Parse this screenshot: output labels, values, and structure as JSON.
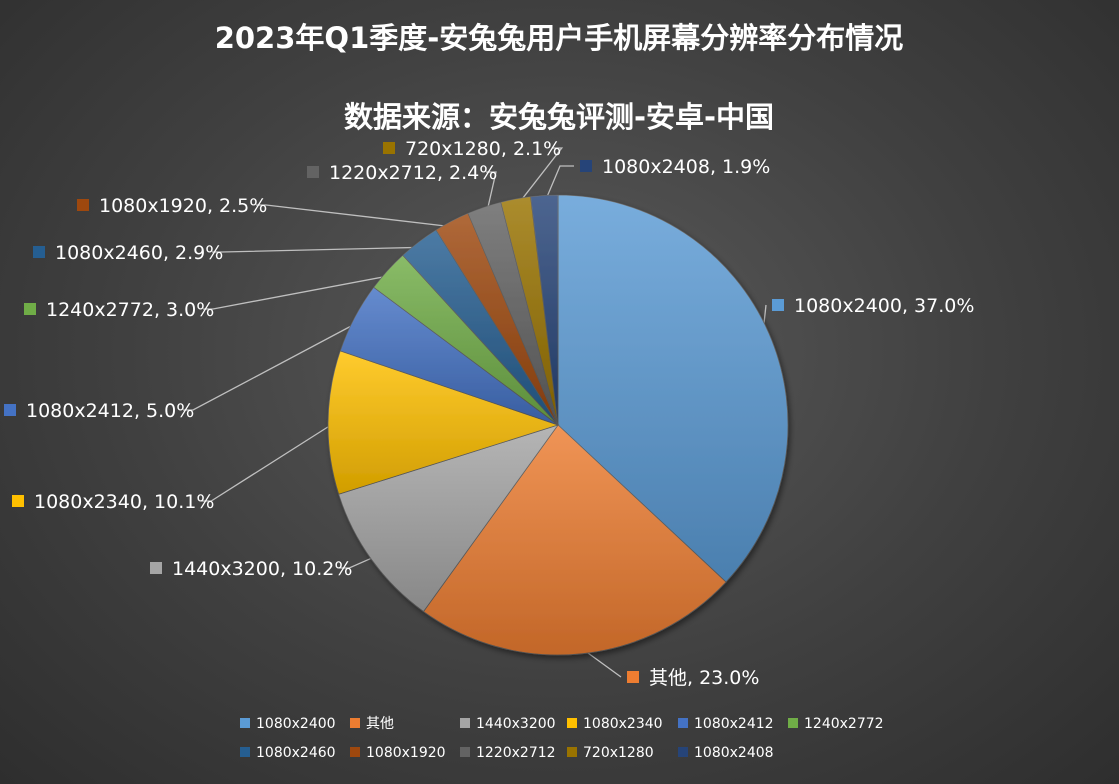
{
  "chart_data": {
    "type": "pie",
    "title": "2023年Q1季度-安兔兔用户手机屏幕分辨率分布情况",
    "subtitle": "数据来源：安兔兔评测-安卓-中国",
    "categories": [
      "1080x2400",
      "其他",
      "1440x3200",
      "1080x2340",
      "1080x2412",
      "1240x2772",
      "1080x2460",
      "1080x1920",
      "1220x2712",
      "720x1280",
      "1080x2408"
    ],
    "values": [
      37.0,
      23.0,
      10.2,
      10.1,
      5.0,
      3.0,
      2.9,
      2.5,
      2.4,
      2.1,
      1.9
    ],
    "data_labels": [
      "1080x2400, 37.0%",
      "其他, 23.0%",
      "1440x3200, 10.2%",
      "1080x2340, 10.1%",
      "1080x2412, 5.0%",
      "1240x2772, 3.0%",
      "1080x2460, 2.9%",
      "1080x1920, 2.5%",
      "1220x2712, 2.4%",
      "720x1280, 2.1%",
      "1080x2408, 1.9%"
    ],
    "colors": [
      "#5b9bd5",
      "#ed7d31",
      "#a5a5a5",
      "#ffc000",
      "#4472c4",
      "#70ad47",
      "#255e91",
      "#9e480e",
      "#636363",
      "#997300",
      "#264478"
    ],
    "unit": "%",
    "legend_position": "bottom"
  }
}
